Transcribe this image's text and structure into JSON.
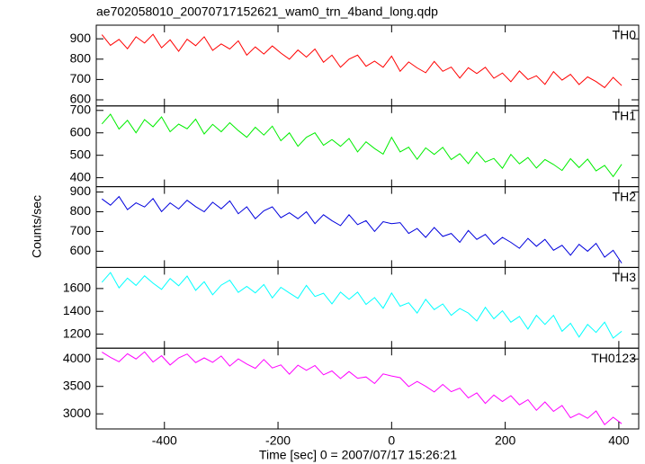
{
  "chart_data": {
    "type": "line",
    "title": "ae702058010_20070717152621_wam0_trn_4band_long.qdp",
    "xlabel": "Time [sec] 0 = 2007/07/17 15:26:21",
    "ylabel": "Counts/sec",
    "xlim": [
      -520,
      435
    ],
    "xticks": [
      -400,
      -200,
      0,
      200,
      400
    ],
    "x": [
      -510,
      -495,
      -480,
      -465,
      -450,
      -435,
      -420,
      -405,
      -390,
      -375,
      -360,
      -345,
      -330,
      -315,
      -300,
      -285,
      -270,
      -255,
      -240,
      -225,
      -210,
      -195,
      -180,
      -165,
      -150,
      -135,
      -120,
      -105,
      -90,
      -75,
      -60,
      -45,
      -30,
      -15,
      0,
      15,
      30,
      45,
      60,
      75,
      90,
      105,
      120,
      135,
      150,
      165,
      180,
      195,
      210,
      225,
      240,
      255,
      270,
      285,
      300,
      315,
      330,
      345,
      360,
      375,
      390,
      405
    ],
    "series": [
      {
        "name": "TH0",
        "color": "#ff0000",
        "ylim": [
          570,
          967
        ],
        "yticks": [
          600,
          700,
          800,
          900
        ],
        "values": [
          920,
          868,
          897,
          851,
          910,
          879,
          922,
          856,
          895,
          839,
          898,
          866,
          910,
          843,
          875,
          850,
          890,
          820,
          860,
          825,
          865,
          830,
          800,
          845,
          810,
          850,
          785,
          820,
          760,
          800,
          820,
          765,
          790,
          760,
          815,
          740,
          786,
          757,
          733,
          789,
          740,
          761,
          707,
          758,
          729,
          760,
          706,
          732,
          689,
          742,
          700,
          718,
          676,
          739,
          697,
          725,
          675,
          713,
          690,
          660,
          710,
          670
        ]
      },
      {
        "name": "TH1",
        "color": "#00ee00",
        "ylim": [
          360,
          720
        ],
        "yticks": [
          400,
          500,
          600,
          700
        ],
        "values": [
          640,
          683,
          617,
          656,
          600,
          659,
          627,
          671,
          605,
          639,
          618,
          661,
          595,
          638,
          605,
          645,
          610,
          580,
          625,
          590,
          630,
          565,
          600,
          540,
          580,
          600,
          545,
          570,
          540,
          575,
          515,
          560,
          530,
          505,
          580,
          515,
          536,
          482,
          533,
          504,
          535,
          481,
          507,
          463,
          514,
          470,
          486,
          442,
          504,
          462,
          490,
          443,
          481,
          459,
          432,
          485,
          445,
          483,
          430,
          455,
          405,
          460
        ]
      },
      {
        "name": "TH2",
        "color": "#0000dd",
        "ylim": [
          518,
          927
        ],
        "yticks": [
          600,
          700,
          800,
          900
        ],
        "values": [
          865,
          833,
          877,
          811,
          845,
          824,
          867,
          801,
          845,
          814,
          858,
          826,
          800,
          848,
          815,
          855,
          790,
          825,
          765,
          805,
          825,
          770,
          795,
          765,
          800,
          740,
          785,
          755,
          730,
          785,
          735,
          755,
          700,
          750,
          740,
          745,
          690,
          715,
          670,
          720,
          675,
          690,
          645,
          705,
          660,
          685,
          635,
          670,
          645,
          615,
          665,
          625,
          660,
          605,
          630,
          580,
          635,
          600,
          640,
          570,
          605,
          540
        ]
      },
      {
        "name": "TH3",
        "color": "#00ffff",
        "ylim": [
          1077,
          1785
        ],
        "yticks": [
          1200,
          1400,
          1600
        ],
        "values": [
          1655,
          1740,
          1606,
          1691,
          1627,
          1712,
          1647,
          1593,
          1688,
          1624,
          1709,
          1584,
          1660,
          1545,
          1630,
          1673,
          1566,
          1619,
          1562,
          1635,
          1518,
          1611,
          1561,
          1514,
          1627,
          1530,
          1559,
          1466,
          1569,
          1505,
          1568,
          1461,
          1521,
          1427,
          1560,
          1445,
          1475,
          1385,
          1505,
          1415,
          1465,
          1365,
          1425,
          1385,
          1315,
          1435,
          1335,
          1405,
          1305,
          1355,
          1245,
          1365,
          1285,
          1365,
          1225,
          1295,
          1175,
          1285,
          1215,
          1305,
          1165,
          1225
        ]
      },
      {
        "name": "TH0123",
        "color": "#ff00ff",
        "ylim": [
          2725,
          4197
        ],
        "yticks": [
          3000,
          3500,
          4000
        ],
        "values": [
          4125,
          4030,
          3950,
          4095,
          4000,
          4130,
          3945,
          4060,
          3890,
          4020,
          4090,
          3935,
          4020,
          3940,
          4055,
          3871,
          4002,
          3908,
          3829,
          3990,
          3836,
          3892,
          3723,
          3888,
          3794,
          3880,
          3711,
          3782,
          3643,
          3770,
          3650,
          3672,
          3552,
          3728,
          3690,
          3660,
          3497,
          3590,
          3502,
          3399,
          3537,
          3404,
          3468,
          3291,
          3383,
          3190,
          3343,
          3225,
          3332,
          3165,
          3257,
          3065,
          3217,
          3044,
          3151,
          2928,
          3006,
          2918,
          3053,
          2803,
          2938,
          2820
        ]
      }
    ]
  }
}
